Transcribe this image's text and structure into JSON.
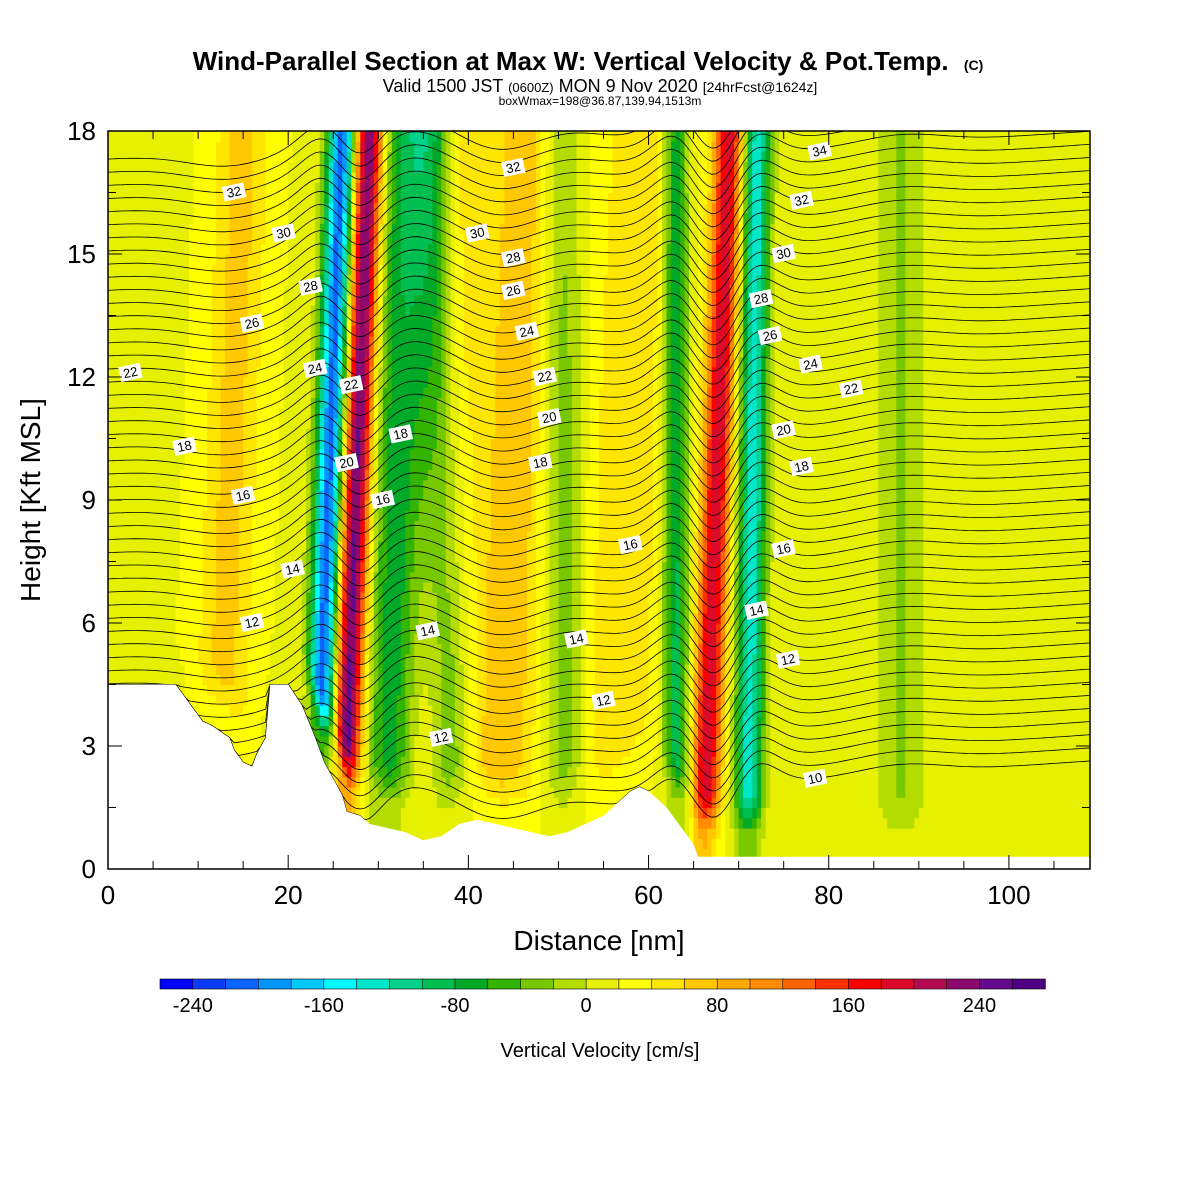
{
  "chart_data": {
    "type": "heatmap",
    "title": "Wind-Parallel Section at Max W: Vertical Velocity & Pot.Temp.",
    "title_mark": "(C)",
    "subtitle_parts": [
      "Valid 1500 JST",
      "(0600Z)",
      "MON 9 Nov 2020",
      "[24hrFcst@1624z]"
    ],
    "subtitle2": "boxWmax=198@36.87,139.94,1513m",
    "xlabel": "Distance [nm]",
    "ylabel": "Height [Kft MSL]",
    "xlim": [
      0,
      109
    ],
    "ylim": [
      0,
      18
    ],
    "xticks": [
      0,
      20,
      40,
      60,
      80,
      100
    ],
    "yticks": [
      0,
      3,
      6,
      9,
      12,
      15,
      18
    ],
    "colorbar": {
      "label": "Vertical Velocity [cm/s]",
      "min": -260,
      "max": 280,
      "step": 20,
      "ticks": [
        -240,
        -160,
        -80,
        0,
        80,
        160,
        240
      ],
      "colors": [
        "#0000ff",
        "#0a3cff",
        "#0a64ff",
        "#0096ff",
        "#00c8ff",
        "#00ffff",
        "#00e6c8",
        "#00d28c",
        "#00be50",
        "#00aa28",
        "#32b400",
        "#78c800",
        "#b4dc00",
        "#e6f000",
        "#ffff00",
        "#ffe600",
        "#ffc800",
        "#ffaa00",
        "#ff8c00",
        "#ff6400",
        "#ff3200",
        "#ff0000",
        "#dc0a28",
        "#b40a50",
        "#8c0a6e",
        "#640a8c",
        "#4b0082"
      ]
    },
    "terrain": {
      "x": [
        0,
        7.5,
        8.5,
        9.5,
        10.5,
        11.5,
        13.5,
        14,
        15,
        16,
        16.5,
        17.5,
        18,
        20,
        21.5,
        23,
        24,
        24.5,
        25,
        26,
        26.5,
        28,
        29,
        31,
        33,
        35,
        37,
        39,
        41,
        43,
        45,
        47,
        49,
        51,
        53,
        55,
        56,
        57,
        58,
        59,
        60,
        61,
        62,
        63,
        64,
        65,
        65.5,
        66,
        70,
        75,
        80,
        85,
        90,
        95,
        100,
        105,
        109
      ],
      "height": [
        4.5,
        4.5,
        4.2,
        3.9,
        3.6,
        3.5,
        3.2,
        2.9,
        2.6,
        2.5,
        2.8,
        3.2,
        4.5,
        4.5,
        4.0,
        3.2,
        2.6,
        2.4,
        2.2,
        1.8,
        1.4,
        1.3,
        1.1,
        1.0,
        0.9,
        0.7,
        0.8,
        1.1,
        1.2,
        1.1,
        1.0,
        0.9,
        0.8,
        0.9,
        1.1,
        1.3,
        1.5,
        1.7,
        1.9,
        2.0,
        1.9,
        1.7,
        1.5,
        1.2,
        0.9,
        0.6,
        0.3,
        0.3,
        0.3,
        0.3,
        0.3,
        0.3,
        0.3,
        0.3,
        0.3,
        0.3,
        0.3
      ]
    },
    "updraft_bands": [
      {
        "x_bottom": 26,
        "x_top": 29,
        "peak": 240,
        "width": 1.6
      },
      {
        "x_bottom": 43,
        "x_top": 47,
        "peak": 60,
        "width": 4
      },
      {
        "x_bottom": 55,
        "x_top": 60,
        "peak": 40,
        "width": 5
      },
      {
        "x_bottom": 66,
        "x_top": 69,
        "peak": 180,
        "width": 1.6
      },
      {
        "x_bottom": 35,
        "x_top": 40,
        "peak": 40,
        "width": 3
      },
      {
        "x_bottom": 12,
        "x_top": 15,
        "peak": 50,
        "width": 3
      }
    ],
    "downdraft_bands": [
      {
        "x_bottom": 23,
        "x_top": 26,
        "peak": -230,
        "width": 1.6
      },
      {
        "x_bottom": 31,
        "x_top": 33,
        "peak": -90,
        "width": 3
      },
      {
        "x_bottom": 38,
        "x_top": 36,
        "peak": -80,
        "width": 2.5
      },
      {
        "x_bottom": 51,
        "x_top": 50,
        "peak": -60,
        "width": 2.5
      },
      {
        "x_bottom": 63,
        "x_top": 63,
        "peak": -110,
        "width": 1.5
      },
      {
        "x_bottom": 71,
        "x_top": 72,
        "peak": -150,
        "width": 1.6
      },
      {
        "x_bottom": 88,
        "x_top": 88,
        "peak": -40,
        "width": 3
      }
    ],
    "contours": {
      "levels": [
        10,
        12,
        14,
        16,
        18,
        20,
        22,
        24,
        26,
        28,
        30,
        32,
        34
      ],
      "labels": [
        {
          "x": 2.5,
          "y": 12.1,
          "text": "22"
        },
        {
          "x": 8.5,
          "y": 10.3,
          "text": "18"
        },
        {
          "x": 15,
          "y": 9.1,
          "text": "16"
        },
        {
          "x": 16,
          "y": 6.0,
          "text": "12"
        },
        {
          "x": 14,
          "y": 16.5,
          "text": "32"
        },
        {
          "x": 19.5,
          "y": 15.5,
          "text": "30"
        },
        {
          "x": 22.5,
          "y": 14.2,
          "text": "28"
        },
        {
          "x": 16,
          "y": 13.3,
          "text": "26"
        },
        {
          "x": 23,
          "y": 12.2,
          "text": "24"
        },
        {
          "x": 20.5,
          "y": 7.3,
          "text": "14"
        },
        {
          "x": 26.5,
          "y": 9.9,
          "text": "20"
        },
        {
          "x": 27,
          "y": 11.8,
          "text": "22"
        },
        {
          "x": 32.5,
          "y": 10.6,
          "text": "18"
        },
        {
          "x": 30.5,
          "y": 9.0,
          "text": "16"
        },
        {
          "x": 35.5,
          "y": 5.8,
          "text": "14"
        },
        {
          "x": 37,
          "y": 3.2,
          "text": "12"
        },
        {
          "x": 45,
          "y": 17.1,
          "text": "32"
        },
        {
          "x": 41,
          "y": 15.5,
          "text": "30"
        },
        {
          "x": 45,
          "y": 14.9,
          "text": "28"
        },
        {
          "x": 45,
          "y": 14.1,
          "text": "26"
        },
        {
          "x": 46.5,
          "y": 13.1,
          "text": "24"
        },
        {
          "x": 48.5,
          "y": 12.0,
          "text": "22"
        },
        {
          "x": 49,
          "y": 11.0,
          "text": "20"
        },
        {
          "x": 48,
          "y": 9.9,
          "text": "18"
        },
        {
          "x": 58,
          "y": 7.9,
          "text": "16"
        },
        {
          "x": 52,
          "y": 5.6,
          "text": "14"
        },
        {
          "x": 55,
          "y": 4.1,
          "text": "12"
        },
        {
          "x": 79,
          "y": 17.5,
          "text": "34"
        },
        {
          "x": 77,
          "y": 16.3,
          "text": "32"
        },
        {
          "x": 75,
          "y": 15.0,
          "text": "30"
        },
        {
          "x": 72.5,
          "y": 13.9,
          "text": "28"
        },
        {
          "x": 73.5,
          "y": 13.0,
          "text": "26"
        },
        {
          "x": 78,
          "y": 12.3,
          "text": "24"
        },
        {
          "x": 82.5,
          "y": 11.7,
          "text": "22"
        },
        {
          "x": 75,
          "y": 10.7,
          "text": "20"
        },
        {
          "x": 77,
          "y": 9.8,
          "text": "18"
        },
        {
          "x": 75,
          "y": 7.8,
          "text": "16"
        },
        {
          "x": 72,
          "y": 6.3,
          "text": "14"
        },
        {
          "x": 75.5,
          "y": 5.1,
          "text": "12"
        },
        {
          "x": 78.5,
          "y": 2.2,
          "text": "10"
        }
      ]
    }
  }
}
